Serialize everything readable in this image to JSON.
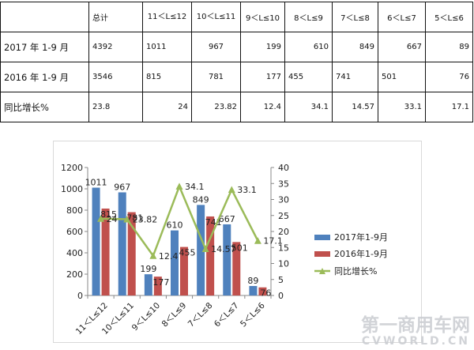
{
  "table": {
    "header": [
      "",
      "总计",
      "11＜L≤12",
      "10＜L≤11",
      "9＜L≤10",
      "8＜L≤9",
      "7＜L≤8",
      "6＜L≤7",
      "5＜L≤6"
    ],
    "rows": [
      {
        "label": "2017 年 1-9 月",
        "cells": [
          "4392",
          "1011",
          "967",
          "199",
          "610",
          "849",
          "667",
          "89"
        ]
      },
      {
        "label": "2016 年 1-9 月",
        "cells": [
          "3546",
          "815",
          "781",
          "177",
          "455",
          "741",
          "501",
          "76"
        ]
      },
      {
        "label": "同比增长%",
        "cells": [
          "23.8",
          "24",
          "23.82",
          "12.4",
          "34.1",
          "14.57",
          "33.1",
          "17.1"
        ]
      }
    ]
  },
  "chart_data": {
    "type": "bar",
    "categories": [
      "11＜L≤12",
      "10＜L≤11",
      "9＜L≤10",
      "8＜L≤9",
      "7＜L≤8",
      "6＜L≤7",
      "5＜L≤6"
    ],
    "series": [
      {
        "name": "2017年1-9月",
        "type": "bar",
        "axis": "left",
        "color": "#4f81bd",
        "values": [
          1011,
          967,
          199,
          610,
          849,
          667,
          89
        ]
      },
      {
        "name": "2016年1-9月",
        "type": "bar",
        "axis": "left",
        "color": "#c0504d",
        "values": [
          815,
          781,
          177,
          455,
          741,
          501,
          76
        ]
      },
      {
        "name": "同比增长%",
        "type": "line",
        "axis": "right",
        "color": "#9bbb59",
        "marker": "triangle",
        "values": [
          24,
          23.82,
          12.4,
          34.1,
          14.57,
          33.1,
          17.1
        ]
      }
    ],
    "ylim_left": [
      0,
      1200
    ],
    "yticks_left": [
      0,
      200,
      400,
      600,
      800,
      1000,
      1200
    ],
    "ylim_right": [
      0,
      40
    ],
    "yticks_right": [
      0,
      5,
      10,
      15,
      20,
      25,
      30,
      35,
      40
    ],
    "grid": false,
    "legend_position": "right"
  },
  "watermark": {
    "cn": "第一商用车网",
    "en": "CVWORLD.CN",
    "color": "#c9ccd1"
  }
}
